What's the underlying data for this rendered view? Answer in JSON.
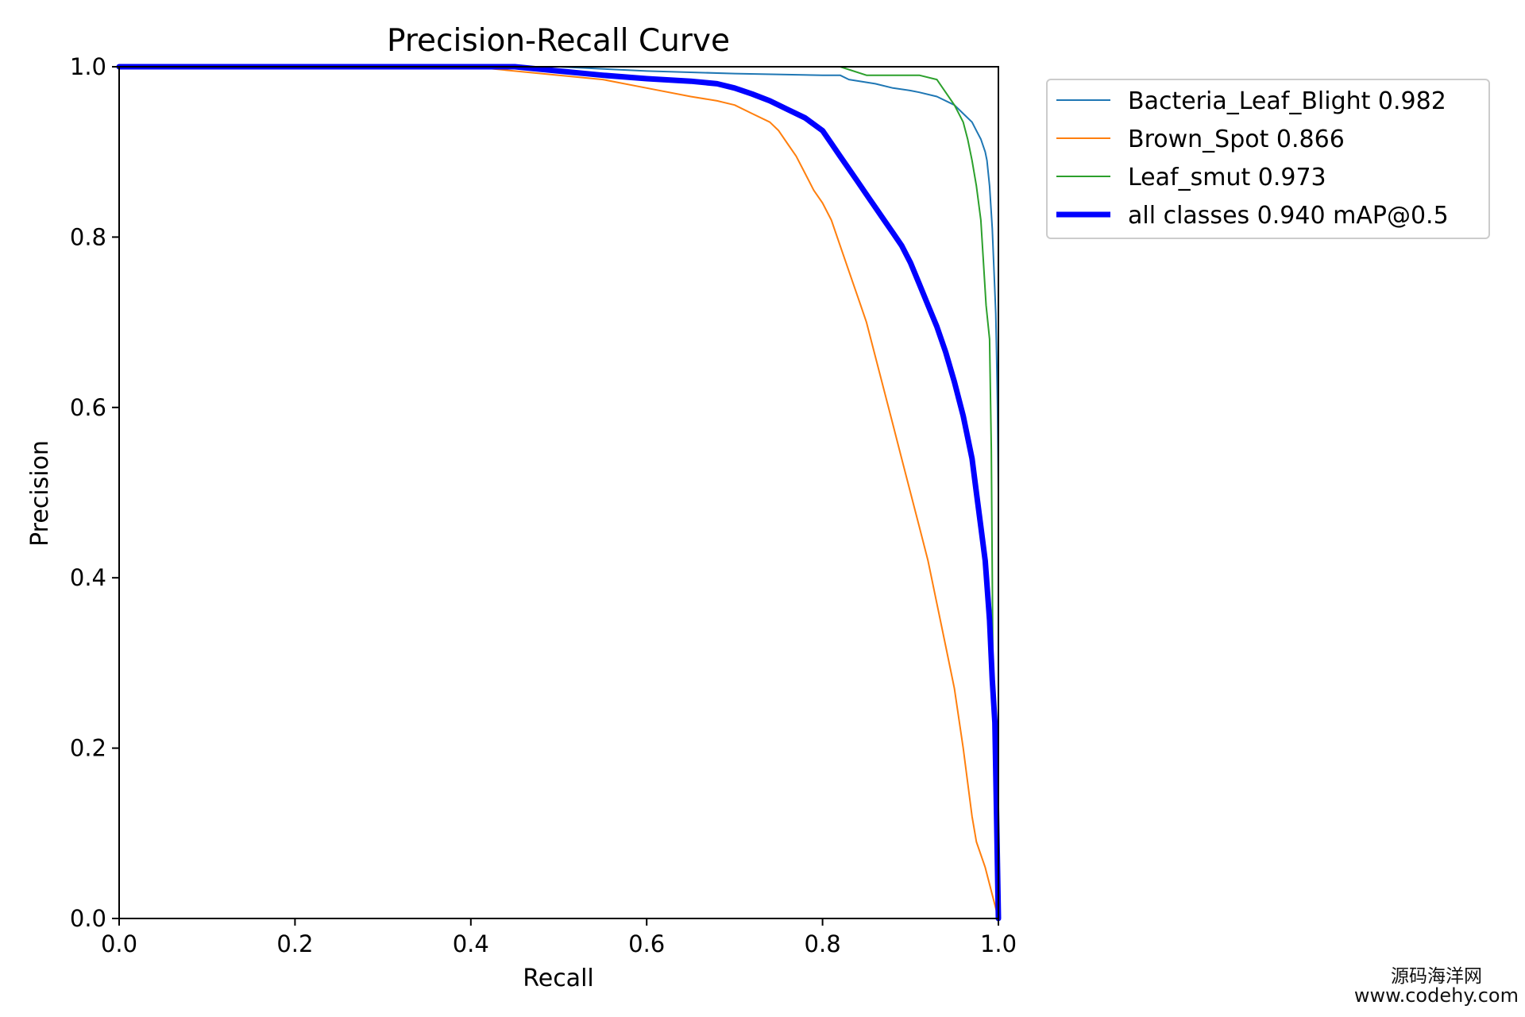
{
  "chart_data": {
    "type": "line",
    "title": "Precision-Recall Curve",
    "xlabel": "Recall",
    "ylabel": "Precision",
    "xlim": [
      0.0,
      1.0
    ],
    "ylim": [
      0.0,
      1.0
    ],
    "x_ticks": [
      "0.0",
      "0.2",
      "0.4",
      "0.6",
      "0.8",
      "1.0"
    ],
    "y_ticks": [
      "0.0",
      "0.2",
      "0.4",
      "0.6",
      "0.8",
      "1.0"
    ],
    "grid": false,
    "legend_position": "outside-top-right",
    "series": [
      {
        "name": "Bacteria_Leaf_Blight 0.982",
        "color": "#1f77b4",
        "emphasis": false,
        "points": [
          [
            0.0,
            1.0
          ],
          [
            0.5,
            1.0
          ],
          [
            0.6,
            0.995
          ],
          [
            0.7,
            0.992
          ],
          [
            0.8,
            0.99
          ],
          [
            0.82,
            0.99
          ],
          [
            0.83,
            0.985
          ],
          [
            0.86,
            0.98
          ],
          [
            0.88,
            0.975
          ],
          [
            0.9,
            0.972
          ],
          [
            0.91,
            0.97
          ],
          [
            0.93,
            0.965
          ],
          [
            0.95,
            0.955
          ],
          [
            0.96,
            0.945
          ],
          [
            0.97,
            0.935
          ],
          [
            0.975,
            0.925
          ],
          [
            0.98,
            0.915
          ],
          [
            0.985,
            0.9
          ],
          [
            0.987,
            0.89
          ],
          [
            0.99,
            0.86
          ],
          [
            0.993,
            0.81
          ],
          [
            0.995,
            0.76
          ],
          [
            0.997,
            0.71
          ],
          [
            0.998,
            0.66
          ],
          [
            0.999,
            0.6
          ],
          [
            1.0,
            0.5
          ],
          [
            1.0,
            0.0
          ]
        ]
      },
      {
        "name": "Brown_Spot 0.866",
        "color": "#ff7f0e",
        "emphasis": false,
        "points": [
          [
            0.0,
            1.0
          ],
          [
            0.4,
            1.0
          ],
          [
            0.5,
            0.99
          ],
          [
            0.55,
            0.985
          ],
          [
            0.6,
            0.975
          ],
          [
            0.65,
            0.965
          ],
          [
            0.68,
            0.96
          ],
          [
            0.7,
            0.955
          ],
          [
            0.72,
            0.945
          ],
          [
            0.74,
            0.935
          ],
          [
            0.75,
            0.925
          ],
          [
            0.76,
            0.91
          ],
          [
            0.77,
            0.895
          ],
          [
            0.78,
            0.875
          ],
          [
            0.79,
            0.855
          ],
          [
            0.8,
            0.84
          ],
          [
            0.81,
            0.82
          ],
          [
            0.82,
            0.79
          ],
          [
            0.83,
            0.76
          ],
          [
            0.84,
            0.73
          ],
          [
            0.85,
            0.7
          ],
          [
            0.86,
            0.66
          ],
          [
            0.87,
            0.62
          ],
          [
            0.88,
            0.58
          ],
          [
            0.89,
            0.54
          ],
          [
            0.9,
            0.5
          ],
          [
            0.91,
            0.46
          ],
          [
            0.92,
            0.42
          ],
          [
            0.93,
            0.37
          ],
          [
            0.94,
            0.32
          ],
          [
            0.95,
            0.27
          ],
          [
            0.96,
            0.2
          ],
          [
            0.97,
            0.12
          ],
          [
            0.975,
            0.09
          ],
          [
            0.985,
            0.06
          ],
          [
            1.0,
            0.0
          ]
        ]
      },
      {
        "name": "Leaf_smut 0.973",
        "color": "#2ca02c",
        "emphasis": false,
        "points": [
          [
            0.0,
            1.0
          ],
          [
            0.82,
            1.0
          ],
          [
            0.85,
            0.99
          ],
          [
            0.88,
            0.99
          ],
          [
            0.91,
            0.99
          ],
          [
            0.93,
            0.985
          ],
          [
            0.94,
            0.97
          ],
          [
            0.95,
            0.955
          ],
          [
            0.96,
            0.935
          ],
          [
            0.965,
            0.915
          ],
          [
            0.97,
            0.89
          ],
          [
            0.975,
            0.86
          ],
          [
            0.98,
            0.82
          ],
          [
            0.983,
            0.77
          ],
          [
            0.986,
            0.72
          ],
          [
            0.99,
            0.68
          ],
          [
            0.992,
            0.55
          ],
          [
            0.993,
            0.4
          ],
          [
            0.994,
            0.25
          ],
          [
            0.996,
            0.18
          ],
          [
            0.997,
            0.1
          ],
          [
            1.0,
            0.0
          ]
        ]
      },
      {
        "name": "all classes 0.940 mAP@0.5",
        "color": "#0000ff",
        "emphasis": true,
        "points": [
          [
            0.0,
            1.0
          ],
          [
            0.45,
            1.0
          ],
          [
            0.5,
            0.995
          ],
          [
            0.55,
            0.99
          ],
          [
            0.6,
            0.986
          ],
          [
            0.65,
            0.983
          ],
          [
            0.68,
            0.98
          ],
          [
            0.7,
            0.975
          ],
          [
            0.72,
            0.968
          ],
          [
            0.74,
            0.96
          ],
          [
            0.76,
            0.95
          ],
          [
            0.78,
            0.94
          ],
          [
            0.8,
            0.925
          ],
          [
            0.81,
            0.91
          ],
          [
            0.82,
            0.895
          ],
          [
            0.83,
            0.88
          ],
          [
            0.84,
            0.865
          ],
          [
            0.85,
            0.85
          ],
          [
            0.86,
            0.835
          ],
          [
            0.87,
            0.82
          ],
          [
            0.88,
            0.805
          ],
          [
            0.89,
            0.79
          ],
          [
            0.9,
            0.77
          ],
          [
            0.91,
            0.745
          ],
          [
            0.92,
            0.72
          ],
          [
            0.93,
            0.695
          ],
          [
            0.94,
            0.665
          ],
          [
            0.95,
            0.63
          ],
          [
            0.96,
            0.59
          ],
          [
            0.97,
            0.54
          ],
          [
            0.975,
            0.5
          ],
          [
            0.98,
            0.46
          ],
          [
            0.985,
            0.42
          ],
          [
            0.99,
            0.35
          ],
          [
            0.993,
            0.28
          ],
          [
            0.996,
            0.23
          ],
          [
            1.0,
            0.0
          ]
        ]
      }
    ]
  },
  "watermark": {
    "line1": "源码海洋网",
    "line2": "www.codehy.com"
  }
}
